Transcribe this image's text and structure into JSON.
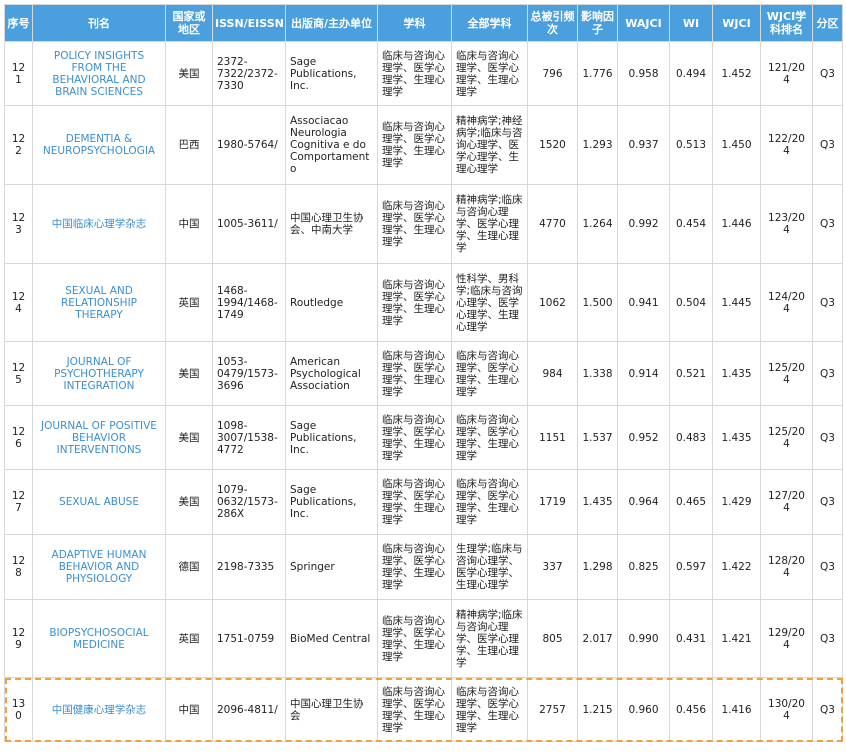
{
  "table": {
    "headers": [
      "序号",
      "刊名",
      "国家或地区",
      "ISSN/EISSN",
      "出版商/主办单位",
      "学科",
      "全部学科",
      "总被引频次",
      "影响因子",
      "WAJCI",
      "WI",
      "WJCI",
      "WJCI学科排名",
      "分区"
    ],
    "rows": [
      [
        "121",
        "POLICY INSIGHTS FROM THE BEHAVIORAL AND BRAIN SCIENCES",
        "美国",
        "2372-7322/2372-7330",
        "Sage Publications, Inc.",
        "临床与咨询心理学、医学心理学、生理心理学",
        "临床与咨询心理学、医学心理学、生理心理学",
        "796",
        "1.776",
        "0.958",
        "0.494",
        "1.452",
        "121/204",
        "Q3"
      ],
      [
        "122",
        "DEMENTIA & NEUROPSYCHOLOGIA",
        "巴西",
        "1980-5764/",
        "Associacao Neurologia Cognitiva e do Comportamento",
        "临床与咨询心理学、医学心理学、生理心理学",
        "精神病学;神经病学;临床与咨询心理学、医学心理学、生理心理学",
        "1520",
        "1.293",
        "0.937",
        "0.513",
        "1.450",
        "122/204",
        "Q3"
      ],
      [
        "123",
        "中国临床心理学杂志",
        "中国",
        "1005-3611/",
        "中国心理卫生协会、中南大学",
        "临床与咨询心理学、医学心理学、生理心理学",
        "精神病学;临床与咨询心理学、医学心理学、生理心理学",
        "4770",
        "1.264",
        "0.992",
        "0.454",
        "1.446",
        "123/204",
        "Q3"
      ],
      [
        "124",
        "SEXUAL AND RELATIONSHIP THERAPY",
        "英国",
        "1468-1994/1468-1749",
        "Routledge",
        "临床与咨询心理学、医学心理学、生理心理学",
        "性科学、男科学;临床与咨询心理学、医学心理学、生理心理学",
        "1062",
        "1.500",
        "0.941",
        "0.504",
        "1.445",
        "124/204",
        "Q3"
      ],
      [
        "125",
        "JOURNAL OF PSYCHOTHERAPY INTEGRATION",
        "美国",
        "1053-0479/1573-3696",
        "American Psychological Association",
        "临床与咨询心理学、医学心理学、生理心理学",
        "临床与咨询心理学、医学心理学、生理心理学",
        "984",
        "1.338",
        "0.914",
        "0.521",
        "1.435",
        "125/204",
        "Q3"
      ],
      [
        "126",
        "JOURNAL OF POSITIVE BEHAVIOR INTERVENTIONS",
        "美国",
        "1098-3007/1538-4772",
        "Sage Publications, Inc.",
        "临床与咨询心理学、医学心理学、生理心理学",
        "临床与咨询心理学、医学心理学、生理心理学",
        "1151",
        "1.537",
        "0.952",
        "0.483",
        "1.435",
        "125/204",
        "Q3"
      ],
      [
        "127",
        "SEXUAL ABUSE",
        "美国",
        "1079-0632/1573-286X",
        "Sage Publications, Inc.",
        "临床与咨询心理学、医学心理学、生理心理学",
        "临床与咨询心理学、医学心理学、生理心理学",
        "1719",
        "1.435",
        "0.964",
        "0.465",
        "1.429",
        "127/204",
        "Q3"
      ],
      [
        "128",
        "ADAPTIVE HUMAN BEHAVIOR AND PHYSIOLOGY",
        "德国",
        "2198-7335",
        "Springer",
        "临床与咨询心理学、医学心理学、生理心理学",
        "生理学;临床与咨询心理学、医学心理学、生理心理学",
        "337",
        "1.298",
        "0.825",
        "0.597",
        "1.422",
        "128/204",
        "Q3"
      ],
      [
        "129",
        "BIOPSYCHOSOCIAL MEDICINE",
        "英国",
        "1751-0759",
        "BioMed Central",
        "临床与咨询心理学、医学心理学、生理心理学",
        "精神病学;临床与咨询心理学、医学心理学、生理心理学",
        "805",
        "2.017",
        "0.990",
        "0.431",
        "1.421",
        "129/204",
        "Q3"
      ],
      [
        "130",
        "中国健康心理学杂志",
        "中国",
        "2096-4811/",
        "中国心理卫生协会",
        "临床与咨询心理学、医学心理学、生理心理学",
        "临床与咨询心理学、医学心理学、生理心理学",
        "2757",
        "1.215",
        "0.960",
        "0.456",
        "1.416",
        "130/204",
        "Q3"
      ]
    ]
  }
}
